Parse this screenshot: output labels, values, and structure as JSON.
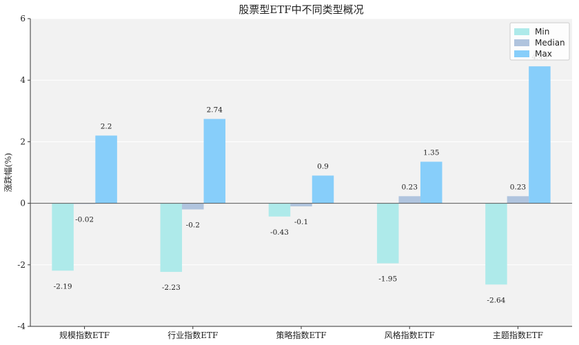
{
  "chart_data": {
    "type": "bar",
    "title": "股票型ETF中不同类型概况",
    "xlabel": "",
    "ylabel": "涨跌幅(%)",
    "categories": [
      "规模指数ETF",
      "行业指数ETF",
      "策略指数ETF",
      "风格指数ETF",
      "主题指数ETF"
    ],
    "series": [
      {
        "name": "Min",
        "values": [
          -2.19,
          -2.23,
          -0.43,
          -1.95,
          -2.64
        ],
        "labels": [
          "-2.19",
          "-2.23",
          "-0.43",
          "-1.95",
          "-2.64"
        ]
      },
      {
        "name": "Median",
        "values": [
          -0.02,
          -0.2,
          -0.1,
          0.23,
          0.23
        ],
        "labels": [
          "-0.02",
          "-0.2",
          "-0.1",
          "0.23",
          "0.23"
        ]
      },
      {
        "name": "Max",
        "values": [
          2.2,
          2.74,
          0.9,
          1.35,
          4.45
        ],
        "labels": [
          "2.2",
          "2.74",
          "0.9",
          "1.35",
          "4.45"
        ]
      }
    ],
    "ylim": [
      -4,
      6
    ],
    "yticks": [
      "-4",
      "-2",
      "0",
      "2",
      "4",
      "6"
    ],
    "grid": true,
    "legend_position": "top-right",
    "colors": {
      "Min": "#aeeaea",
      "Median": "#b0c4de",
      "Max": "#87cefa",
      "background": "#f2f2f2"
    }
  }
}
